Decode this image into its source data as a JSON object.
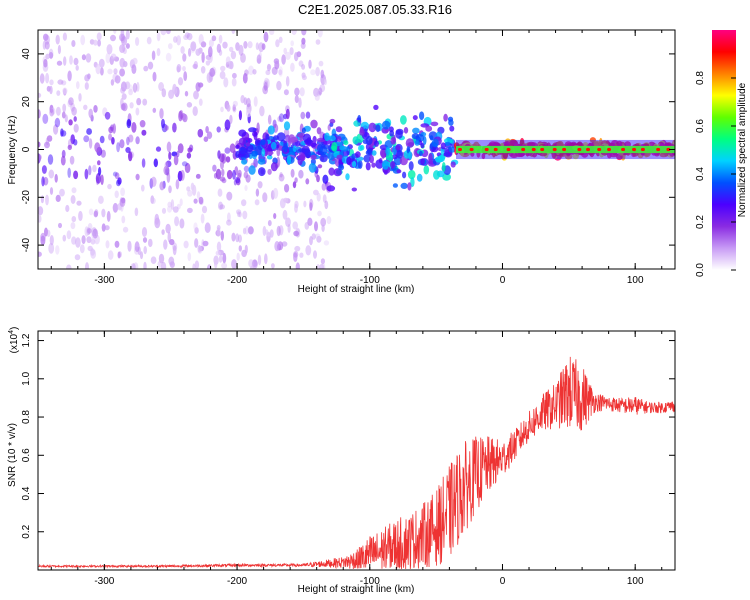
{
  "title": "C2E1.2025.087.05.33.R16",
  "chart_data": [
    {
      "type": "heatmap",
      "title": "C2E1.2025.087.05.33.R16",
      "xlabel": "Height of straight line (km)",
      "ylabel": "Frequency (Hz)",
      "xlim": [
        -350,
        130
      ],
      "ylim": [
        -50,
        50
      ],
      "x_ticks": [
        -300,
        -200,
        -100,
        0,
        100
      ],
      "y_ticks": [
        -40,
        -20,
        0,
        20,
        40
      ],
      "colorbar": {
        "label": "Normalized spectral amplitude",
        "range": [
          0,
          1
        ],
        "ticks": [
          0.0,
          0.2,
          0.4,
          0.6,
          0.8
        ],
        "colormap": [
          "#ffffff",
          "#c89bf5",
          "#8a2be2",
          "#4b00ff",
          "#0050ff",
          "#00d2ff",
          "#00ff80",
          "#60ff00",
          "#ffff00",
          "#ff8000",
          "#ff0000",
          "#ff0080"
        ]
      },
      "regions": [
        {
          "x_range": [
            -350,
            -130
          ],
          "freq_spread": 50,
          "mean_amplitude": 0.08,
          "core_amplitude": 0.2
        },
        {
          "x_range": [
            -200,
            -120
          ],
          "freq_spread": 8,
          "mean_amplitude": 0.3
        },
        {
          "x_range": [
            -130,
            -35
          ],
          "freq_spread": 14,
          "mean_amplitude": 0.35
        },
        {
          "x_range": [
            -35,
            130
          ],
          "freq_spread": 3,
          "mean_amplitude": 0.7,
          "core_amplitude": 0.95
        }
      ]
    },
    {
      "type": "line",
      "xlabel": "Height of straight line (km)",
      "ylabel": "SNR (10 * v/v)",
      "y_multiplier": "(x10",
      "y_multiplier_exp": "4",
      "xlim": [
        -350,
        130
      ],
      "ylim": [
        0,
        1.25
      ],
      "x_ticks": [
        -300,
        -200,
        -100,
        0,
        100
      ],
      "y_ticks": [
        0.2,
        0.4,
        0.6,
        0.8,
        1.0,
        1.2
      ],
      "color": "#ee3333",
      "series": [
        {
          "x": [
            -350,
            -300,
            -250,
            -200,
            -150,
            -120,
            -110,
            -100,
            -90,
            -80,
            -70,
            -60,
            -50,
            -40,
            -30,
            -20,
            -10,
            0,
            10,
            20,
            30,
            40,
            50,
            60,
            70,
            80,
            90,
            100,
            110,
            120,
            130
          ],
          "values": [
            0.02,
            0.02,
            0.02,
            0.025,
            0.025,
            0.04,
            0.05,
            0.08,
            0.1,
            0.13,
            0.15,
            0.18,
            0.22,
            0.3,
            0.42,
            0.5,
            0.55,
            0.58,
            0.66,
            0.75,
            0.82,
            0.86,
            0.93,
            0.9,
            0.88,
            0.87,
            0.86,
            0.86,
            0.85,
            0.85,
            0.86
          ],
          "noise": [
            0.005,
            0.005,
            0.006,
            0.007,
            0.008,
            0.03,
            0.06,
            0.1,
            0.12,
            0.14,
            0.15,
            0.17,
            0.2,
            0.25,
            0.25,
            0.2,
            0.15,
            0.1,
            0.08,
            0.08,
            0.1,
            0.12,
            0.2,
            0.18,
            0.05,
            0.04,
            0.04,
            0.05,
            0.03,
            0.03,
            0.03
          ]
        }
      ]
    }
  ]
}
